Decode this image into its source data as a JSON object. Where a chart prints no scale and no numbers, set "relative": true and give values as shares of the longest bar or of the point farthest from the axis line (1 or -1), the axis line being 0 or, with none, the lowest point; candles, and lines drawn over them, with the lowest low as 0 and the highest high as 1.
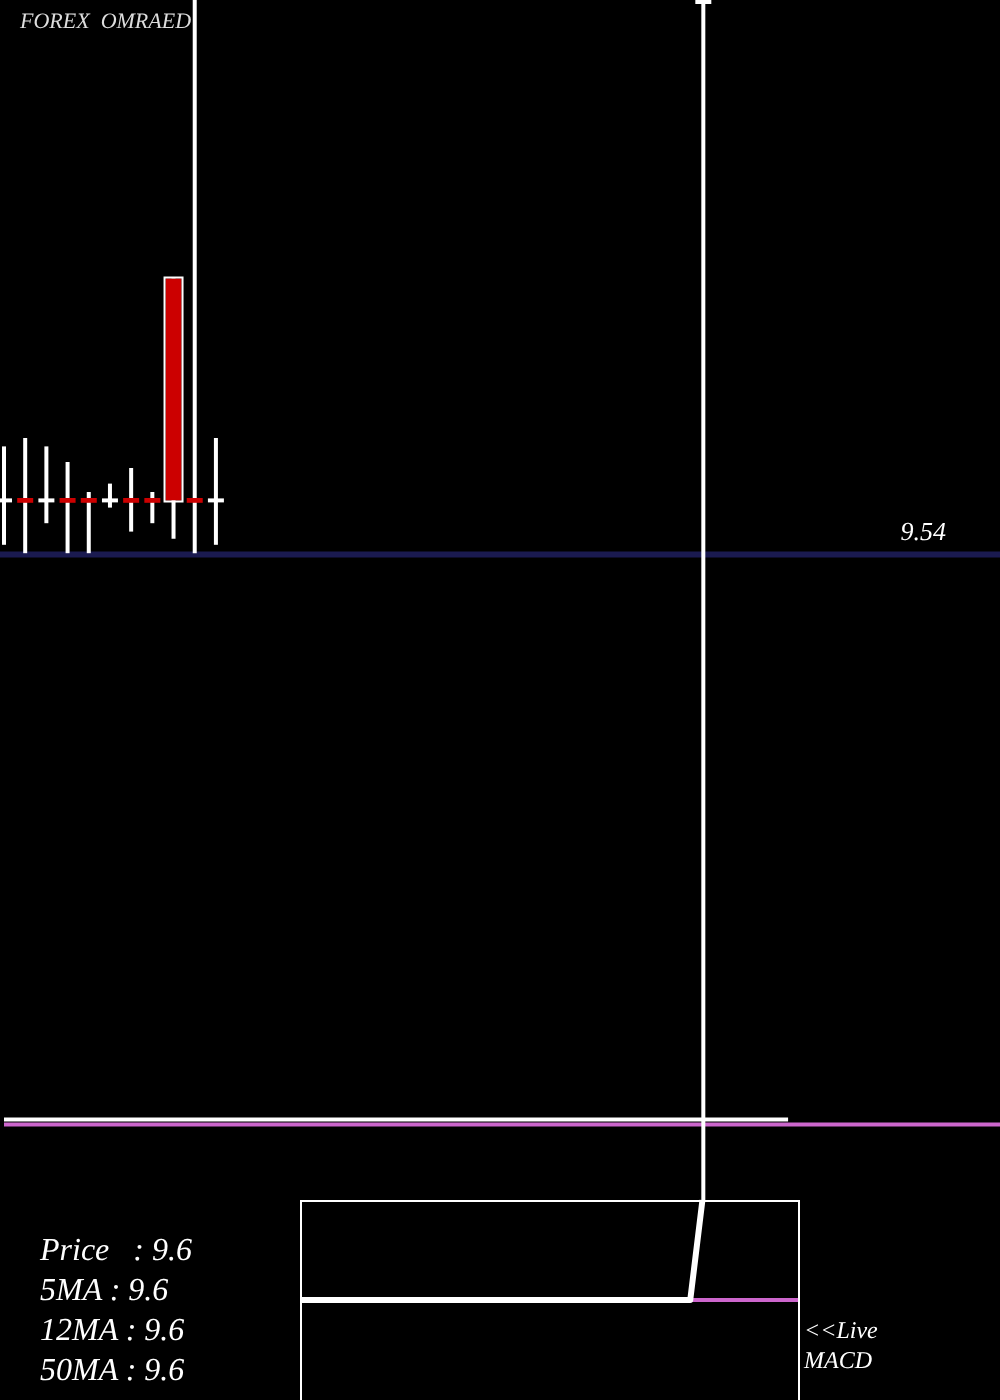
{
  "chart_data": [
    {
      "type": "candlestick",
      "title": "FOREX  OMRAED",
      "relative": true,
      "categories": [
        null,
        null,
        null,
        null,
        null,
        null,
        null,
        null,
        null,
        null,
        null,
        null,
        null,
        null,
        null,
        null,
        null,
        null,
        null,
        null,
        null,
        null,
        null,
        null,
        null,
        null,
        null,
        null,
        null,
        null,
        null,
        null,
        null,
        null,
        null,
        null,
        null,
        null,
        null,
        null,
        null,
        null,
        null,
        null,
        null,
        null,
        null,
        null
      ],
      "ohlc": [
        [
          0.583,
          0.628,
          0.546,
          0.583
        ],
        [
          0.585,
          0.635,
          0.539,
          0.581
        ],
        [
          0.583,
          0.628,
          0.564,
          0.583
        ],
        [
          0.585,
          0.615,
          0.539,
          0.581
        ],
        [
          0.585,
          0.59,
          0.539,
          0.581
        ],
        [
          0.583,
          0.597,
          0.577,
          0.583
        ],
        [
          0.585,
          0.61,
          0.557,
          0.581
        ],
        [
          0.585,
          0.59,
          0.564,
          0.581
        ],
        [
          0.768,
          0.768,
          0.551,
          0.583
        ],
        [
          0.585,
          1,
          0.539,
          0.581
        ],
        [
          0.583,
          0.635,
          0.546,
          0.583
        ],
        null,
        null,
        null,
        null,
        null,
        null,
        null,
        null,
        null,
        null,
        null,
        null,
        null,
        null,
        null,
        null,
        null,
        null,
        null,
        null,
        null,
        null,
        [
          1,
          1,
          0,
          1
        ],
        null,
        null,
        null,
        null,
        null,
        null,
        null,
        null,
        null,
        null,
        null,
        null,
        null,
        null
      ],
      "colors": [
        "#ffffff",
        "#cc0000",
        "#ffffff",
        "#cc0000",
        "#cc0000",
        "#ffffff",
        "#cc0000",
        "#cc0000",
        "#cc0000",
        "#cc0000",
        "#ffffff",
        null,
        null,
        null,
        null,
        null,
        null,
        null,
        null,
        null,
        null,
        null,
        null,
        null,
        null,
        null,
        null,
        null,
        null,
        null,
        null,
        null,
        null,
        "#ffffff",
        null,
        null,
        null,
        null,
        null,
        null,
        null,
        null,
        null,
        null,
        null,
        null,
        null,
        null
      ],
      "series": [
        {
          "type": "line",
          "color": "#ffffff",
          "values": [
            0.067,
            0.067,
            0.067,
            0.067,
            0.067,
            0.067,
            0.067,
            0.067,
            0.067,
            0.067,
            0.067,
            0.067,
            0.067,
            0.067,
            0.067,
            0.067,
            0.067,
            0.067,
            0.067,
            0.067,
            0.067,
            0.067,
            0.067,
            0.067,
            0.067,
            0.067,
            0.067,
            0.067,
            0.067,
            0.067,
            0.067,
            0.067,
            0.067,
            0.067,
            0.067,
            0.067,
            0.067,
            0.067,
            null,
            null,
            null,
            null,
            null,
            null,
            null,
            null,
            null,
            null
          ]
        },
        {
          "type": "line",
          "color": "#cc66cc",
          "values": [
            0.063,
            0.063,
            0.063,
            0.063,
            0.063,
            0.063,
            0.063,
            0.063,
            0.063,
            0.063,
            0.063,
            0.063,
            0.063,
            0.063,
            0.063,
            0.063,
            0.063,
            0.063,
            0.063,
            0.063,
            0.063,
            0.063,
            0.063,
            0.063,
            0.063,
            0.063,
            0.063,
            0.063,
            0.063,
            0.063,
            0.063,
            0.063,
            0.063,
            0.063,
            0.063,
            0.063,
            0.063,
            0.063,
            0.063,
            0.063,
            0.063,
            0.063,
            0.063,
            0.063,
            0.063,
            0.063,
            0.063,
            0.063
          ]
        }
      ],
      "ref_lines": [
        {
          "axis": "y",
          "value": 0.538,
          "color": "#1a1a50"
        }
      ],
      "annotations": [
        {
          "text": "9.54",
          "y": 0.538
        },
        "Price   : 9.6",
        "5MA : 9.6",
        "12MA : 9.6",
        "50MA : 9.6"
      ]
    },
    {
      "type": "line",
      "relative": true,
      "categories": [
        null,
        null,
        null,
        null,
        null,
        null,
        null,
        null,
        null,
        null,
        null,
        null,
        null,
        null,
        null,
        null,
        null,
        null,
        null,
        null,
        null,
        null,
        null,
        null,
        null,
        null,
        null,
        null,
        null,
        null,
        null,
        null,
        null,
        null,
        null,
        null,
        null,
        null,
        null,
        null,
        null,
        null
      ],
      "series": [
        {
          "color": "#ffffff",
          "values": [
            0,
            0,
            0,
            0,
            0,
            0,
            0,
            0,
            0,
            0,
            0,
            0,
            0,
            0,
            0,
            0,
            0,
            0,
            0,
            0,
            0,
            0,
            0,
            0,
            0,
            0,
            0,
            0,
            0,
            0,
            0,
            0,
            0,
            1,
            null,
            null,
            null,
            null,
            null,
            null,
            null,
            null
          ]
        },
        {
          "color": "#cc66cc",
          "values": [
            null,
            null,
            null,
            null,
            null,
            null,
            null,
            null,
            null,
            null,
            null,
            null,
            null,
            null,
            null,
            null,
            null,
            null,
            null,
            null,
            null,
            null,
            null,
            null,
            null,
            null,
            null,
            null,
            null,
            null,
            null,
            null,
            0,
            0,
            0,
            0,
            0,
            0,
            0,
            0,
            0,
            0
          ]
        }
      ],
      "annotations": [
        "<<Live MACD"
      ]
    }
  ]
}
